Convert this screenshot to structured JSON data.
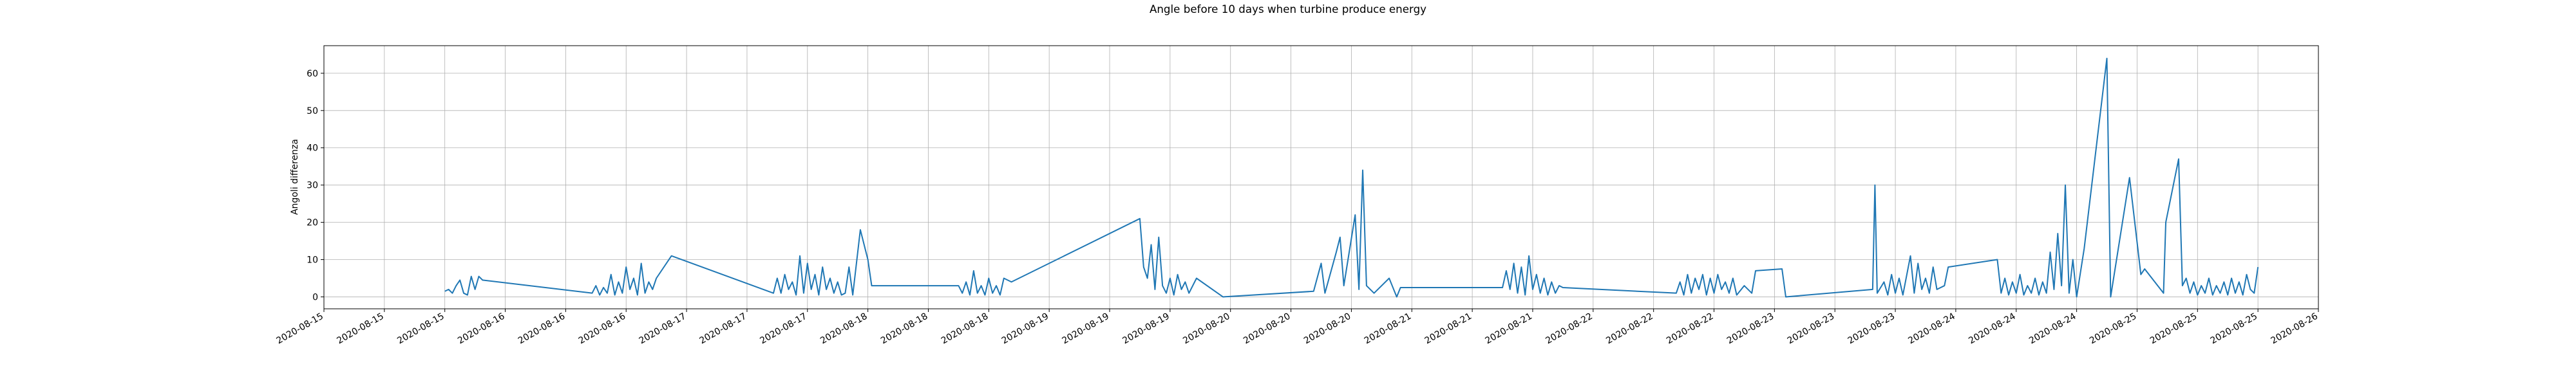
{
  "chart_data": {
    "type": "line",
    "title": "Angle before 10 days when turbine produce energy",
    "y_label": "Angoli differenza",
    "grid": true,
    "xlim": [
      "2020-08-15T00:00",
      "2020-08-26T00:00"
    ],
    "ylim": [
      -3.2,
      67.4
    ],
    "yticks": [
      0,
      10,
      20,
      30,
      40,
      50,
      60
    ],
    "xticks": [
      {
        "value": "2020-08-15T00:00",
        "label": "2020-08-15"
      },
      {
        "value": "2020-08-15T08:00",
        "label": "2020-08-15"
      },
      {
        "value": "2020-08-15T16:00",
        "label": "2020-08-15"
      },
      {
        "value": "2020-08-16T00:00",
        "label": "2020-08-16"
      },
      {
        "value": "2020-08-16T08:00",
        "label": "2020-08-16"
      },
      {
        "value": "2020-08-16T16:00",
        "label": "2020-08-16"
      },
      {
        "value": "2020-08-17T00:00",
        "label": "2020-08-17"
      },
      {
        "value": "2020-08-17T08:00",
        "label": "2020-08-17"
      },
      {
        "value": "2020-08-17T16:00",
        "label": "2020-08-17"
      },
      {
        "value": "2020-08-18T00:00",
        "label": "2020-08-18"
      },
      {
        "value": "2020-08-18T08:00",
        "label": "2020-08-18"
      },
      {
        "value": "2020-08-18T16:00",
        "label": "2020-08-18"
      },
      {
        "value": "2020-08-19T00:00",
        "label": "2020-08-19"
      },
      {
        "value": "2020-08-19T08:00",
        "label": "2020-08-19"
      },
      {
        "value": "2020-08-19T16:00",
        "label": "2020-08-19"
      },
      {
        "value": "2020-08-20T00:00",
        "label": "2020-08-20"
      },
      {
        "value": "2020-08-20T08:00",
        "label": "2020-08-20"
      },
      {
        "value": "2020-08-20T16:00",
        "label": "2020-08-20"
      },
      {
        "value": "2020-08-21T00:00",
        "label": "2020-08-21"
      },
      {
        "value": "2020-08-21T08:00",
        "label": "2020-08-21"
      },
      {
        "value": "2020-08-21T16:00",
        "label": "2020-08-21"
      },
      {
        "value": "2020-08-22T00:00",
        "label": "2020-08-22"
      },
      {
        "value": "2020-08-22T08:00",
        "label": "2020-08-22"
      },
      {
        "value": "2020-08-22T16:00",
        "label": "2020-08-22"
      },
      {
        "value": "2020-08-23T00:00",
        "label": "2020-08-23"
      },
      {
        "value": "2020-08-23T08:00",
        "label": "2020-08-23"
      },
      {
        "value": "2020-08-23T16:00",
        "label": "2020-08-23"
      },
      {
        "value": "2020-08-24T00:00",
        "label": "2020-08-24"
      },
      {
        "value": "2020-08-24T08:00",
        "label": "2020-08-24"
      },
      {
        "value": "2020-08-24T16:00",
        "label": "2020-08-24"
      },
      {
        "value": "2020-08-25T00:00",
        "label": "2020-08-25"
      },
      {
        "value": "2020-08-25T08:00",
        "label": "2020-08-25"
      },
      {
        "value": "2020-08-25T16:00",
        "label": "2020-08-25"
      },
      {
        "value": "2020-08-26T00:00",
        "label": "2020-08-26"
      }
    ],
    "series": [
      {
        "color": "#1f77b4",
        "x": [
          "2020-08-15T16:00",
          "2020-08-15T16:30",
          "2020-08-15T17:00",
          "2020-08-15T17:30",
          "2020-08-15T18:00",
          "2020-08-15T18:30",
          "2020-08-15T19:00",
          "2020-08-15T19:30",
          "2020-08-15T20:00",
          "2020-08-15T20:30",
          "2020-08-15T21:00",
          "2020-08-16T11:30",
          "2020-08-16T12:00",
          "2020-08-16T12:30",
          "2020-08-16T13:00",
          "2020-08-16T13:30",
          "2020-08-16T14:00",
          "2020-08-16T14:30",
          "2020-08-16T15:00",
          "2020-08-16T15:30",
          "2020-08-16T16:00",
          "2020-08-16T16:30",
          "2020-08-16T17:00",
          "2020-08-16T17:30",
          "2020-08-16T18:00",
          "2020-08-16T18:30",
          "2020-08-16T19:00",
          "2020-08-16T19:30",
          "2020-08-16T20:00",
          "2020-08-16T22:00",
          "2020-08-17T11:30",
          "2020-08-17T12:00",
          "2020-08-17T12:30",
          "2020-08-17T13:00",
          "2020-08-17T13:30",
          "2020-08-17T14:00",
          "2020-08-17T14:30",
          "2020-08-17T15:00",
          "2020-08-17T15:30",
          "2020-08-17T16:00",
          "2020-08-17T16:30",
          "2020-08-17T17:00",
          "2020-08-17T17:30",
          "2020-08-17T18:00",
          "2020-08-17T18:30",
          "2020-08-17T19:00",
          "2020-08-17T19:30",
          "2020-08-17T20:00",
          "2020-08-17T20:30",
          "2020-08-17T21:00",
          "2020-08-17T21:30",
          "2020-08-17T22:00",
          "2020-08-17T23:00",
          "2020-08-18T00:00",
          "2020-08-18T00:30",
          "2020-08-18T12:00",
          "2020-08-18T12:30",
          "2020-08-18T13:00",
          "2020-08-18T13:30",
          "2020-08-18T14:00",
          "2020-08-18T14:30",
          "2020-08-18T15:00",
          "2020-08-18T15:30",
          "2020-08-18T16:00",
          "2020-08-18T16:30",
          "2020-08-18T17:00",
          "2020-08-18T17:30",
          "2020-08-18T18:00",
          "2020-08-18T19:00",
          "2020-08-19T12:00",
          "2020-08-19T12:30",
          "2020-08-19T13:00",
          "2020-08-19T13:30",
          "2020-08-19T14:00",
          "2020-08-19T14:30",
          "2020-08-19T15:00",
          "2020-08-19T15:30",
          "2020-08-19T16:00",
          "2020-08-19T16:30",
          "2020-08-19T17:00",
          "2020-08-19T17:30",
          "2020-08-19T18:00",
          "2020-08-19T18:30",
          "2020-08-19T19:30",
          "2020-08-19T23:00",
          "2020-08-20T11:00",
          "2020-08-20T12:00",
          "2020-08-20T12:30",
          "2020-08-20T14:00",
          "2020-08-20T14:30",
          "2020-08-20T15:00",
          "2020-08-20T16:30",
          "2020-08-20T17:00",
          "2020-08-20T17:30",
          "2020-08-20T18:00",
          "2020-08-20T19:00",
          "2020-08-20T21:00",
          "2020-08-20T22:00",
          "2020-08-20T22:30",
          "2020-08-21T12:00",
          "2020-08-21T12:30",
          "2020-08-21T13:00",
          "2020-08-21T13:30",
          "2020-08-21T14:00",
          "2020-08-21T14:30",
          "2020-08-21T15:00",
          "2020-08-21T15:30",
          "2020-08-21T16:00",
          "2020-08-21T16:30",
          "2020-08-21T17:00",
          "2020-08-21T17:30",
          "2020-08-21T18:00",
          "2020-08-21T18:30",
          "2020-08-21T19:00",
          "2020-08-21T19:30",
          "2020-08-21T20:00",
          "2020-08-22T11:00",
          "2020-08-22T11:30",
          "2020-08-22T12:00",
          "2020-08-22T12:30",
          "2020-08-22T13:00",
          "2020-08-22T13:30",
          "2020-08-22T14:00",
          "2020-08-22T14:30",
          "2020-08-22T15:00",
          "2020-08-22T15:30",
          "2020-08-22T16:00",
          "2020-08-22T16:30",
          "2020-08-22T17:00",
          "2020-08-22T17:30",
          "2020-08-22T18:00",
          "2020-08-22T18:30",
          "2020-08-22T19:00",
          "2020-08-22T20:00",
          "2020-08-22T21:00",
          "2020-08-22T21:30",
          "2020-08-23T01:00",
          "2020-08-23T01:30",
          "2020-08-23T13:00",
          "2020-08-23T13:18",
          "2020-08-23T13:36",
          "2020-08-23T14:30",
          "2020-08-23T15:00",
          "2020-08-23T15:30",
          "2020-08-23T16:00",
          "2020-08-23T16:30",
          "2020-08-23T17:00",
          "2020-08-23T18:00",
          "2020-08-23T18:30",
          "2020-08-23T19:00",
          "2020-08-23T19:30",
          "2020-08-23T20:00",
          "2020-08-23T20:30",
          "2020-08-23T21:00",
          "2020-08-23T21:30",
          "2020-08-23T22:30",
          "2020-08-23T23:00",
          "2020-08-24T05:30",
          "2020-08-24T06:00",
          "2020-08-24T06:30",
          "2020-08-24T07:00",
          "2020-08-24T07:30",
          "2020-08-24T08:00",
          "2020-08-24T08:30",
          "2020-08-24T09:00",
          "2020-08-24T09:30",
          "2020-08-24T10:00",
          "2020-08-24T10:30",
          "2020-08-24T11:00",
          "2020-08-24T11:30",
          "2020-08-24T12:00",
          "2020-08-24T12:30",
          "2020-08-24T13:00",
          "2020-08-24T13:30",
          "2020-08-24T14:00",
          "2020-08-24T14:30",
          "2020-08-24T15:00",
          "2020-08-24T15:30",
          "2020-08-24T16:00",
          "2020-08-24T17:00",
          "2020-08-24T20:00",
          "2020-08-24T20:30",
          "2020-08-24T23:00",
          "2020-08-25T00:30",
          "2020-08-25T01:00",
          "2020-08-25T03:30",
          "2020-08-25T03:48",
          "2020-08-25T05:30",
          "2020-08-25T06:00",
          "2020-08-25T06:30",
          "2020-08-25T07:00",
          "2020-08-25T07:30",
          "2020-08-25T08:00",
          "2020-08-25T08:30",
          "2020-08-25T09:00",
          "2020-08-25T09:30",
          "2020-08-25T10:00",
          "2020-08-25T10:30",
          "2020-08-25T11:00",
          "2020-08-25T11:30",
          "2020-08-25T12:00",
          "2020-08-25T12:30",
          "2020-08-25T13:00",
          "2020-08-25T13:30",
          "2020-08-25T14:00",
          "2020-08-25T14:30",
          "2020-08-25T15:00",
          "2020-08-25T15:30",
          "2020-08-25T16:00"
        ],
        "values": [
          1.5,
          2,
          1,
          3,
          4.5,
          1,
          0.5,
          5.5,
          2,
          5.5,
          4.5,
          1,
          3,
          0.5,
          2.5,
          1,
          6,
          0.5,
          4,
          1,
          8,
          2,
          5,
          0.5,
          9,
          1,
          4,
          2,
          5,
          11,
          1,
          5,
          1,
          6,
          2,
          4,
          0.5,
          11,
          1,
          9,
          2,
          6,
          0.5,
          8,
          2,
          5,
          1,
          4,
          0.5,
          1,
          8,
          0.5,
          18,
          10,
          3,
          3,
          1,
          4,
          0.5,
          7,
          1,
          3,
          0.5,
          5,
          1,
          3,
          0.5,
          5,
          4,
          21,
          8,
          5,
          14,
          2,
          16,
          3,
          1,
          5,
          0.5,
          6,
          2,
          4,
          1,
          5,
          0,
          1.5,
          9,
          1,
          12,
          16,
          3,
          22,
          2,
          34,
          3,
          1,
          5,
          0,
          2.5,
          2.5,
          7,
          2,
          9,
          1,
          8,
          0.5,
          11,
          2,
          6,
          1,
          5,
          0.5,
          4,
          1,
          3,
          2.5,
          1,
          4,
          0.5,
          6,
          1,
          5,
          2,
          6,
          0.5,
          5,
          1,
          6,
          2,
          4,
          1,
          5,
          0.5,
          3,
          1,
          7,
          7.5,
          0,
          2,
          30,
          1,
          4,
          0.5,
          6,
          1,
          5,
          0.5,
          11,
          1,
          9,
          2,
          5,
          1,
          8,
          2,
          3,
          8,
          10,
          1,
          5,
          0.5,
          4,
          1,
          6,
          0.5,
          3,
          1,
          5,
          0.5,
          4,
          1,
          12,
          2,
          17,
          3,
          30,
          1,
          10,
          0,
          13,
          64,
          0,
          32,
          6,
          7.5,
          1,
          20,
          37,
          3,
          5,
          1,
          4,
          0.5,
          3,
          1,
          5,
          0.5,
          3,
          1,
          4,
          0.5,
          5,
          1,
          4,
          0.5,
          6,
          2,
          1,
          8
        ]
      }
    ]
  }
}
